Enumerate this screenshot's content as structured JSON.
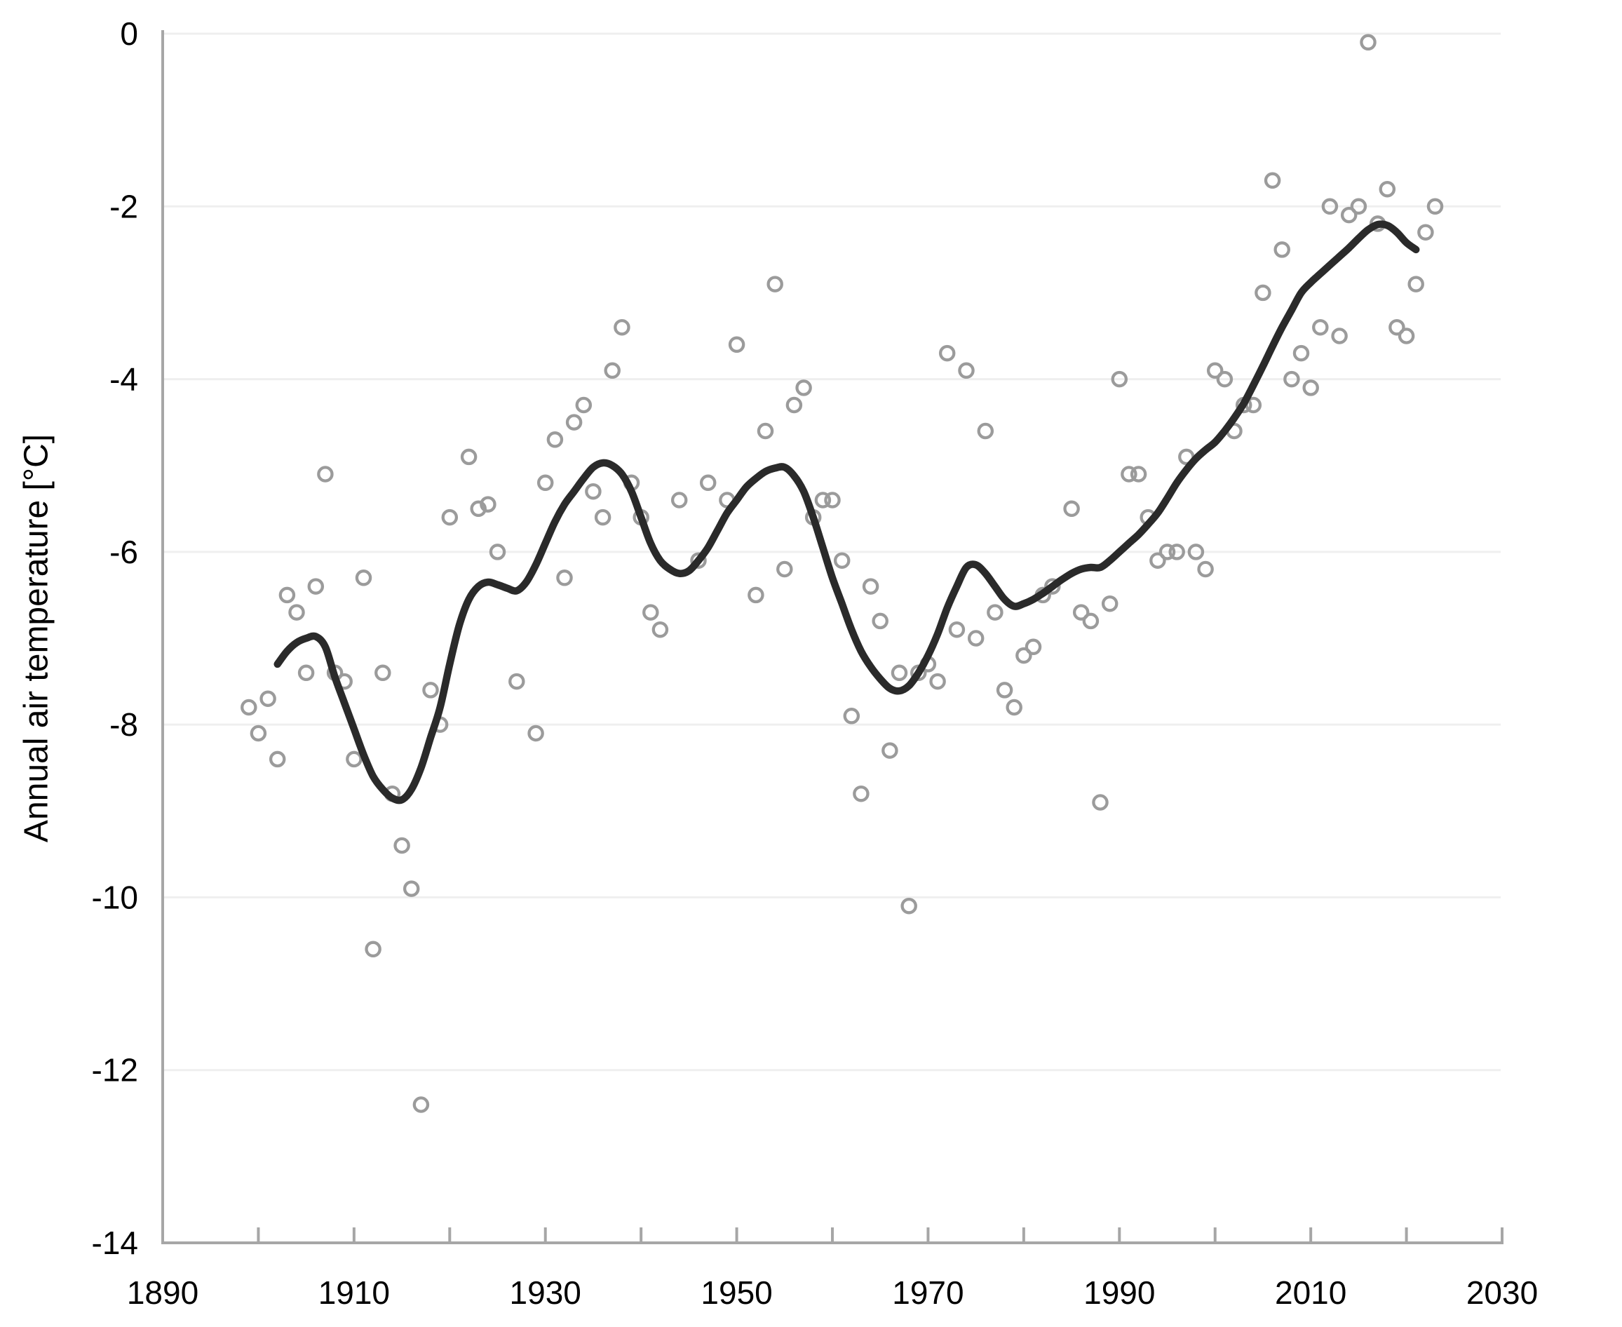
{
  "axes": {
    "y_label": "Annual air temperature [°C]",
    "y_ticks": [
      0,
      -2,
      -4,
      -6,
      -8,
      -10,
      -12,
      -14
    ],
    "y_range": [
      -14,
      0
    ],
    "x_labeled_ticks": [
      1890,
      1910,
      1930,
      1950,
      1970,
      1990,
      2010,
      2030
    ],
    "x_minor_ticks": [
      1890,
      1900,
      1910,
      1920,
      1930,
      1940,
      1950,
      1960,
      1970,
      1980,
      1990,
      2000,
      2010,
      2020,
      2030
    ],
    "x_range": [
      1890,
      2030
    ],
    "grid": "horizontal-only"
  },
  "colors": {
    "background": "#ffffff",
    "gridline": "#efefef",
    "axis": "#a6a6a6",
    "tick": "#a6a6a6",
    "scatter_stroke": "#9b9b9b",
    "trend": "#2a2a2a",
    "text": "#000000"
  },
  "chart_data": {
    "type": "scatter",
    "title": "",
    "xlabel": "",
    "ylabel": "Annual air temperature [°C]",
    "xlim": [
      1890,
      2030
    ],
    "ylim": [
      -14,
      0
    ],
    "legend": "none",
    "series": [
      {
        "name": "annual-values",
        "type": "scatter",
        "marker": "open-circle",
        "points": [
          [
            1899,
            -7.8
          ],
          [
            1900,
            -8.1
          ],
          [
            1901,
            -7.7
          ],
          [
            1902,
            -8.4
          ],
          [
            1903,
            -6.5
          ],
          [
            1904,
            -6.7
          ],
          [
            1905,
            -7.4
          ],
          [
            1906,
            -6.4
          ],
          [
            1907,
            -5.1
          ],
          [
            1908,
            -7.4
          ],
          [
            1909,
            -7.5
          ],
          [
            1910,
            -8.4
          ],
          [
            1911,
            -6.3
          ],
          [
            1912,
            -10.6
          ],
          [
            1913,
            -7.4
          ],
          [
            1914,
            -8.8
          ],
          [
            1915,
            -9.4
          ],
          [
            1916,
            -9.9
          ],
          [
            1917,
            -12.4
          ],
          [
            1918,
            -7.6
          ],
          [
            1919,
            -8.0
          ],
          [
            1920,
            -5.6
          ],
          [
            1922,
            -4.9
          ],
          [
            1923,
            -5.5
          ],
          [
            1924,
            -5.45
          ],
          [
            1925,
            -6.0
          ],
          [
            1927,
            -7.5
          ],
          [
            1929,
            -8.1
          ],
          [
            1930,
            -5.2
          ],
          [
            1931,
            -4.7
          ],
          [
            1932,
            -6.3
          ],
          [
            1933,
            -4.5
          ],
          [
            1934,
            -4.3
          ],
          [
            1935,
            -5.3
          ],
          [
            1936,
            -5.6
          ],
          [
            1937,
            -3.9
          ],
          [
            1938,
            -3.4
          ],
          [
            1939,
            -5.2
          ],
          [
            1940,
            -5.6
          ],
          [
            1941,
            -6.7
          ],
          [
            1942,
            -6.9
          ],
          [
            1944,
            -5.4
          ],
          [
            1946,
            -6.1
          ],
          [
            1947,
            -5.2
          ],
          [
            1949,
            -5.4
          ],
          [
            1950,
            -3.6
          ],
          [
            1952,
            -6.5
          ],
          [
            1953,
            -4.6
          ],
          [
            1954,
            -2.9
          ],
          [
            1955,
            -6.2
          ],
          [
            1956,
            -4.3
          ],
          [
            1957,
            -4.1
          ],
          [
            1958,
            -5.6
          ],
          [
            1959,
            -5.4
          ],
          [
            1960,
            -5.4
          ],
          [
            1961,
            -6.1
          ],
          [
            1962,
            -7.9
          ],
          [
            1963,
            -8.8
          ],
          [
            1964,
            -6.4
          ],
          [
            1965,
            -6.8
          ],
          [
            1966,
            -8.3
          ],
          [
            1967,
            -7.4
          ],
          [
            1968,
            -10.1
          ],
          [
            1969,
            -7.4
          ],
          [
            1970,
            -7.3
          ],
          [
            1971,
            -7.5
          ],
          [
            1972,
            -3.7
          ],
          [
            1973,
            -6.9
          ],
          [
            1974,
            -3.9
          ],
          [
            1975,
            -7.0
          ],
          [
            1976,
            -4.6
          ],
          [
            1977,
            -6.7
          ],
          [
            1978,
            -7.6
          ],
          [
            1979,
            -7.8
          ],
          [
            1980,
            -7.2
          ],
          [
            1981,
            -7.1
          ],
          [
            1982,
            -6.5
          ],
          [
            1983,
            -6.4
          ],
          [
            1985,
            -5.5
          ],
          [
            1986,
            -6.7
          ],
          [
            1987,
            -6.8
          ],
          [
            1988,
            -8.9
          ],
          [
            1989,
            -6.6
          ],
          [
            1990,
            -4.0
          ],
          [
            1991,
            -5.1
          ],
          [
            1992,
            -5.1
          ],
          [
            1993,
            -5.6
          ],
          [
            1994,
            -6.1
          ],
          [
            1995,
            -6.0
          ],
          [
            1996,
            -6.0
          ],
          [
            1997,
            -4.9
          ],
          [
            1998,
            -6.0
          ],
          [
            1999,
            -6.2
          ],
          [
            2000,
            -3.9
          ],
          [
            2001,
            -4.0
          ],
          [
            2002,
            -4.6
          ],
          [
            2003,
            -4.3
          ],
          [
            2004,
            -4.3
          ],
          [
            2005,
            -3.0
          ],
          [
            2006,
            -1.7
          ],
          [
            2007,
            -2.5
          ],
          [
            2008,
            -4.0
          ],
          [
            2009,
            -3.7
          ],
          [
            2010,
            -4.1
          ],
          [
            2011,
            -3.4
          ],
          [
            2012,
            -2.0
          ],
          [
            2013,
            -3.5
          ],
          [
            2014,
            -2.1
          ],
          [
            2015,
            -2.0
          ],
          [
            2016,
            -0.1
          ],
          [
            2017,
            -2.2
          ],
          [
            2018,
            -1.8
          ],
          [
            2019,
            -3.4
          ],
          [
            2020,
            -3.5
          ],
          [
            2021,
            -2.9
          ],
          [
            2022,
            -2.3
          ],
          [
            2023,
            -2.0
          ]
        ]
      },
      {
        "name": "smoothed-trend",
        "type": "line",
        "points": [
          [
            1902,
            -7.3
          ],
          [
            1903,
            -7.15
          ],
          [
            1904,
            -7.05
          ],
          [
            1905,
            -7.0
          ],
          [
            1906,
            -6.98
          ],
          [
            1907,
            -7.1
          ],
          [
            1908,
            -7.45
          ],
          [
            1909,
            -7.75
          ],
          [
            1910,
            -8.05
          ],
          [
            1911,
            -8.35
          ],
          [
            1912,
            -8.6
          ],
          [
            1913,
            -8.75
          ],
          [
            1914,
            -8.85
          ],
          [
            1915,
            -8.87
          ],
          [
            1916,
            -8.75
          ],
          [
            1917,
            -8.5
          ],
          [
            1918,
            -8.15
          ],
          [
            1919,
            -7.8
          ],
          [
            1920,
            -7.3
          ],
          [
            1921,
            -6.85
          ],
          [
            1922,
            -6.55
          ],
          [
            1923,
            -6.4
          ],
          [
            1924,
            -6.35
          ],
          [
            1925,
            -6.38
          ],
          [
            1926,
            -6.42
          ],
          [
            1927,
            -6.45
          ],
          [
            1928,
            -6.35
          ],
          [
            1929,
            -6.15
          ],
          [
            1930,
            -5.9
          ],
          [
            1931,
            -5.65
          ],
          [
            1932,
            -5.45
          ],
          [
            1933,
            -5.3
          ],
          [
            1934,
            -5.15
          ],
          [
            1935,
            -5.02
          ],
          [
            1936,
            -4.97
          ],
          [
            1937,
            -5.0
          ],
          [
            1938,
            -5.1
          ],
          [
            1939,
            -5.3
          ],
          [
            1940,
            -5.6
          ],
          [
            1941,
            -5.9
          ],
          [
            1942,
            -6.1
          ],
          [
            1943,
            -6.2
          ],
          [
            1944,
            -6.25
          ],
          [
            1945,
            -6.22
          ],
          [
            1946,
            -6.1
          ],
          [
            1947,
            -5.95
          ],
          [
            1948,
            -5.75
          ],
          [
            1949,
            -5.55
          ],
          [
            1950,
            -5.4
          ],
          [
            1951,
            -5.25
          ],
          [
            1952,
            -5.15
          ],
          [
            1953,
            -5.07
          ],
          [
            1954,
            -5.03
          ],
          [
            1955,
            -5.02
          ],
          [
            1956,
            -5.12
          ],
          [
            1957,
            -5.3
          ],
          [
            1958,
            -5.6
          ],
          [
            1959,
            -5.95
          ],
          [
            1960,
            -6.3
          ],
          [
            1961,
            -6.6
          ],
          [
            1962,
            -6.9
          ],
          [
            1963,
            -7.15
          ],
          [
            1964,
            -7.33
          ],
          [
            1965,
            -7.47
          ],
          [
            1966,
            -7.58
          ],
          [
            1967,
            -7.61
          ],
          [
            1968,
            -7.55
          ],
          [
            1969,
            -7.4
          ],
          [
            1970,
            -7.2
          ],
          [
            1971,
            -6.95
          ],
          [
            1972,
            -6.65
          ],
          [
            1973,
            -6.4
          ],
          [
            1974,
            -6.18
          ],
          [
            1975,
            -6.15
          ],
          [
            1976,
            -6.25
          ],
          [
            1977,
            -6.4
          ],
          [
            1978,
            -6.55
          ],
          [
            1979,
            -6.63
          ],
          [
            1980,
            -6.6
          ],
          [
            1981,
            -6.55
          ],
          [
            1982,
            -6.48
          ],
          [
            1983,
            -6.4
          ],
          [
            1984,
            -6.32
          ],
          [
            1985,
            -6.25
          ],
          [
            1986,
            -6.2
          ],
          [
            1987,
            -6.18
          ],
          [
            1988,
            -6.18
          ],
          [
            1989,
            -6.1
          ],
          [
            1990,
            -6.0
          ],
          [
            1991,
            -5.9
          ],
          [
            1992,
            -5.8
          ],
          [
            1993,
            -5.68
          ],
          [
            1994,
            -5.55
          ],
          [
            1995,
            -5.38
          ],
          [
            1996,
            -5.2
          ],
          [
            1997,
            -5.05
          ],
          [
            1998,
            -4.92
          ],
          [
            1999,
            -4.82
          ],
          [
            2000,
            -4.73
          ],
          [
            2001,
            -4.6
          ],
          [
            2002,
            -4.45
          ],
          [
            2003,
            -4.28
          ],
          [
            2004,
            -4.07
          ],
          [
            2005,
            -3.85
          ],
          [
            2006,
            -3.62
          ],
          [
            2007,
            -3.4
          ],
          [
            2008,
            -3.2
          ],
          [
            2009,
            -3.0
          ],
          [
            2010,
            -2.88
          ],
          [
            2011,
            -2.78
          ],
          [
            2012,
            -2.68
          ],
          [
            2013,
            -2.58
          ],
          [
            2014,
            -2.48
          ],
          [
            2015,
            -2.37
          ],
          [
            2016,
            -2.27
          ],
          [
            2017,
            -2.21
          ],
          [
            2018,
            -2.22
          ],
          [
            2019,
            -2.3
          ],
          [
            2020,
            -2.42
          ],
          [
            2021,
            -2.5
          ]
        ]
      }
    ]
  }
}
